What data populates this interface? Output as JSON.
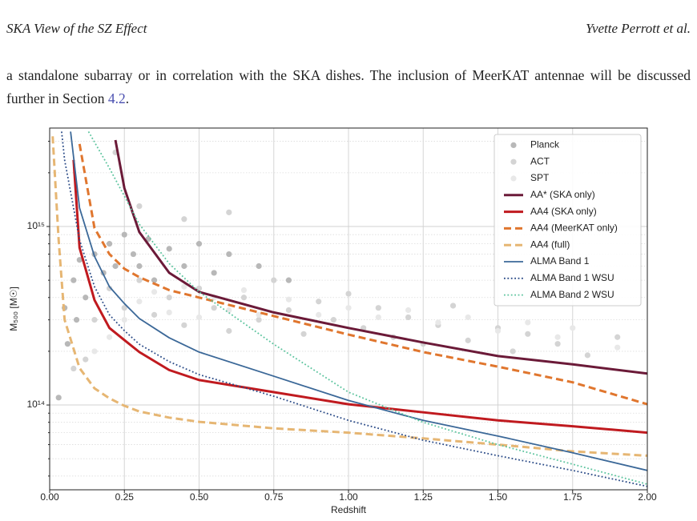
{
  "header": {
    "title": "SKA View of the SZ Effect",
    "authors": "Yvette Perrott et al."
  },
  "paragraph": {
    "before": "a standalone subarray or in correlation with the SKA dishes. The inclusion of MeerKAT antennae will be discussed further in Section ",
    "link": "4.2",
    "after": "."
  },
  "chart_data": {
    "type": "line",
    "xlabel": "Redshift",
    "ylabel": "M₅₀₀ [M☉]",
    "xlim": [
      0,
      2.0
    ],
    "ylim": [
      33500000000000.0,
      3560000000000000.0
    ],
    "ylog": true,
    "grid": true,
    "legend": "upper right",
    "xticks": [
      {
        "value": 0,
        "label": "0.00"
      },
      {
        "value": 0.25,
        "label": "0.25"
      },
      {
        "value": 0.5,
        "label": "0.50"
      },
      {
        "value": 0.75,
        "label": "0.75"
      },
      {
        "value": 1.0,
        "label": "1.00"
      },
      {
        "value": 1.25,
        "label": "1.25"
      },
      {
        "value": 1.5,
        "label": "1.50"
      },
      {
        "value": 1.75,
        "label": "1.75"
      },
      {
        "value": 2.0,
        "label": "2.00"
      }
    ],
    "yticks": [
      {
        "value": 100000000000000.0,
        "label": "10¹⁴"
      },
      {
        "value": 1000000000000000.0,
        "label": "10¹⁵"
      }
    ],
    "yminorticks": [
      40000000000000.0,
      50000000000000.0,
      60000000000000.0,
      70000000000000.0,
      80000000000000.0,
      90000000000000.0,
      200000000000000.0,
      300000000000000.0,
      400000000000000.0,
      500000000000000.0,
      600000000000000.0,
      700000000000000.0,
      800000000000000.0,
      900000000000000.0,
      2000000000000000.0,
      3000000000000000.0
    ],
    "series": [
      {
        "name": "Planck",
        "type": "scatter",
        "color": "#b8b8b8",
        "x": [
          0.03,
          0.05,
          0.06,
          0.08,
          0.09,
          0.1,
          0.12,
          0.15,
          0.18,
          0.2,
          0.22,
          0.25,
          0.28,
          0.3,
          0.33,
          0.35,
          0.4,
          0.45,
          0.5,
          0.55,
          0.6,
          0.7,
          0.8
        ],
        "values": [
          110000000000000.0,
          350000000000000.0,
          220000000000000.0,
          500000000000000.0,
          300000000000000.0,
          650000000000000.0,
          400000000000000.0,
          700000000000000.0,
          550000000000000.0,
          800000000000000.0,
          600000000000000.0,
          900000000000000.0,
          700000000000000.0,
          600000000000000.0,
          850000000000000.0,
          500000000000000.0,
          750000000000000.0,
          600000000000000.0,
          800000000000000.0,
          550000000000000.0,
          700000000000000.0,
          600000000000000.0,
          500000000000000.0
        ]
      },
      {
        "name": "ACT",
        "type": "scatter",
        "color": "#d4d4d4",
        "x": [
          0.08,
          0.12,
          0.15,
          0.2,
          0.22,
          0.25,
          0.3,
          0.3,
          0.35,
          0.4,
          0.45,
          0.45,
          0.5,
          0.55,
          0.6,
          0.6,
          0.65,
          0.7,
          0.75,
          0.8,
          0.85,
          0.9,
          0.95,
          1.0,
          1.05,
          1.1,
          1.15,
          1.2,
          1.25,
          1.3,
          1.35,
          1.4,
          1.5,
          1.55,
          1.6,
          1.7,
          1.8,
          1.9
        ],
        "values": [
          160000000000000.0,
          180000000000000.0,
          300000000000000.0,
          450000000000000.0,
          2600000000000000.0,
          350000000000000.0,
          500000000000000.0,
          1300000000000000.0,
          320000000000000.0,
          400000000000000.0,
          280000000000000.0,
          1100000000000000.0,
          450000000000000.0,
          350000000000000.0,
          260000000000000.0,
          1200000000000000.0,
          400000000000000.0,
          300000000000000.0,
          500000000000000.0,
          340000000000000.0,
          250000000000000.0,
          380000000000000.0,
          300000000000000.0,
          420000000000000.0,
          270000000000000.0,
          350000000000000.0,
          240000000000000.0,
          310000000000000.0,
          220000000000000.0,
          280000000000000.0,
          360000000000000.0,
          230000000000000.0,
          270000000000000.0,
          200000000000000.0,
          250000000000000.0,
          220000000000000.0,
          190000000000000.0,
          240000000000000.0
        ]
      },
      {
        "name": "SPT",
        "type": "scatter",
        "color": "#e8e8e8",
        "x": [
          0.15,
          0.2,
          0.25,
          0.3,
          0.35,
          0.4,
          0.45,
          0.5,
          0.55,
          0.6,
          0.65,
          0.7,
          0.8,
          0.9,
          1.0,
          1.1,
          1.2,
          1.3,
          1.4,
          1.5,
          1.6,
          1.7,
          1.75,
          1.9
        ],
        "values": [
          200000000000000.0,
          240000000000000.0,
          300000000000000.0,
          380000000000000.0,
          430000000000000.0,
          330000000000000.0,
          460000000000000.0,
          310000000000000.0,
          400000000000000.0,
          340000000000000.0,
          440000000000000.0,
          320000000000000.0,
          390000000000000.0,
          320000000000000.0,
          350000000000000.0,
          310000000000000.0,
          340000000000000.0,
          290000000000000.0,
          310000000000000.0,
          260000000000000.0,
          290000000000000.0,
          240000000000000.0,
          270000000000000.0,
          210000000000000.0
        ]
      },
      {
        "name": "AA* (SKA only)",
        "type": "line",
        "dash": "solid",
        "width": 3,
        "color": "#6b1a38",
        "x": [
          0.22,
          0.25,
          0.3,
          0.4,
          0.5,
          0.75,
          1.0,
          1.25,
          1.5,
          1.75,
          2.0
        ],
        "values": [
          3050000000000000.0,
          1640000000000000.0,
          930000000000000.0,
          550000000000000.0,
          430000000000000.0,
          330000000000000.0,
          270000000000000.0,
          224000000000000.0,
          188000000000000.0,
          169000000000000.0,
          150000000000000.0
        ]
      },
      {
        "name": "AA4 (SKA only)",
        "type": "line",
        "dash": "solid",
        "width": 3,
        "color": "#c01a1f",
        "x": [
          0.08,
          0.1,
          0.15,
          0.2,
          0.25,
          0.3,
          0.4,
          0.5,
          0.75,
          1.0,
          1.25,
          1.5,
          1.75,
          2.0
        ],
        "values": [
          2360000000000000.0,
          760000000000000.0,
          387000000000000.0,
          270000000000000.0,
          231000000000000.0,
          198000000000000.0,
          157000000000000.0,
          138000000000000.0,
          118000000000000.0,
          101000000000000.0,
          91000000000000.0,
          82000000000000.0,
          76000000000000.0,
          70000000000000.0
        ]
      },
      {
        "name": "AA4 (MeerKAT only)",
        "type": "line",
        "dash": "dashed",
        "width": 3,
        "color": "#e0762e",
        "x": [
          0.1,
          0.15,
          0.2,
          0.25,
          0.3,
          0.4,
          0.5,
          0.75,
          1.0,
          1.25,
          1.5,
          1.75,
          2.0
        ],
        "values": [
          2900000000000000.0,
          980000000000000.0,
          700000000000000.0,
          580000000000000.0,
          520000000000000.0,
          440000000000000.0,
          400000000000000.0,
          315000000000000.0,
          248000000000000.0,
          198000000000000.0,
          164000000000000.0,
          134000000000000.0,
          101000000000000.0
        ]
      },
      {
        "name": "AA4 (full)",
        "type": "line",
        "dash": "dashed",
        "width": 3,
        "color": "#e6b673",
        "x": [
          0.01,
          0.03,
          0.05,
          0.1,
          0.15,
          0.2,
          0.25,
          0.3,
          0.4,
          0.5,
          0.75,
          1.0,
          1.25,
          1.5,
          1.75,
          2.0
        ],
        "values": [
          3200000000000000.0,
          840000000000000.0,
          300000000000000.0,
          161000000000000.0,
          124000000000000.0,
          109000000000000.0,
          99000000000000.0,
          92000000000000.0,
          85000000000000.0,
          80500000000000.0,
          74000000000000.0,
          70000000000000.0,
          65000000000000.0,
          60000000000000.0,
          55000000000000.0,
          52000000000000.0
        ]
      },
      {
        "name": "ALMA Band 1",
        "type": "line",
        "dash": "solid",
        "width": 1.8,
        "color": "#3b6898",
        "x": [
          0.07,
          0.1,
          0.15,
          0.2,
          0.25,
          0.3,
          0.4,
          0.5,
          0.75,
          1.0,
          1.25,
          1.5,
          1.75,
          2.0
        ],
        "values": [
          3400000000000000.0,
          1270000000000000.0,
          680000000000000.0,
          460000000000000.0,
          370000000000000.0,
          305000000000000.0,
          238000000000000.0,
          198000000000000.0,
          145000000000000.0,
          106000000000000.0,
          82000000000000.0,
          67000000000000.0,
          54000000000000.0,
          43000000000000.0
        ]
      },
      {
        "name": "ALMA Band 1 WSU",
        "type": "line",
        "dash": "dotted",
        "width": 1.8,
        "color": "#2c4c88",
        "x": [
          0.04,
          0.05,
          0.1,
          0.15,
          0.2,
          0.25,
          0.3,
          0.4,
          0.5,
          0.75,
          1.0,
          1.25,
          1.5,
          1.75,
          2.0
        ],
        "values": [
          3400000000000000.0,
          2360000000000000.0,
          840000000000000.0,
          460000000000000.0,
          320000000000000.0,
          261000000000000.0,
          219000000000000.0,
          175000000000000.0,
          148000000000000.0,
          112000000000000.0,
          82000000000000.0,
          63500000000000.0,
          52000000000000.0,
          43000000000000.0,
          35000000000000.0
        ]
      },
      {
        "name": "ALMA Band 2 WSU",
        "type": "line",
        "dash": "dotted",
        "width": 1.8,
        "color": "#5cc49e",
        "x": [
          0.13,
          0.2,
          0.25,
          0.3,
          0.4,
          0.5,
          0.75,
          1.0,
          1.25,
          1.5,
          1.75,
          2.0
        ],
        "values": [
          3400000000000000.0,
          2120000000000000.0,
          1480000000000000.0,
          1030000000000000.0,
          620000000000000.0,
          430000000000000.0,
          219000000000000.0,
          118000000000000.0,
          80000000000000.0,
          60000000000000.0,
          46600000000000.0,
          36000000000000.0
        ]
      }
    ]
  }
}
